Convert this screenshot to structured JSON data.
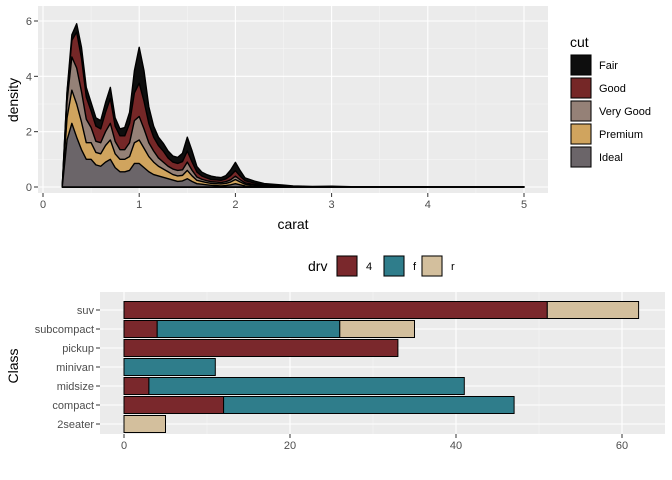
{
  "chart_data": [
    {
      "type": "area",
      "subtype": "stacked-density",
      "xlabel": "carat",
      "ylabel": "density",
      "xlim": [
        0,
        5
      ],
      "ylim": [
        0,
        6
      ],
      "x_ticks": [
        "0",
        "1",
        "2",
        "3",
        "4",
        "5"
      ],
      "y_ticks": [
        "0",
        "2",
        "4",
        "6"
      ],
      "legend": {
        "title": "cut",
        "position": "right"
      },
      "x": [
        0.2,
        0.25,
        0.3,
        0.35,
        0.4,
        0.45,
        0.5,
        0.55,
        0.6,
        0.65,
        0.7,
        0.75,
        0.8,
        0.85,
        0.9,
        0.95,
        1.0,
        1.05,
        1.1,
        1.15,
        1.2,
        1.25,
        1.3,
        1.35,
        1.4,
        1.45,
        1.5,
        1.55,
        1.6,
        1.65,
        1.7,
        1.75,
        1.8,
        1.85,
        1.9,
        1.95,
        2.0,
        2.05,
        2.1,
        2.2,
        2.3,
        2.4,
        2.5,
        2.6,
        2.8,
        3.0,
        3.2,
        3.5,
        4.0,
        4.5,
        5.0
      ],
      "series": [
        {
          "name": "Ideal",
          "color": "#6b6569",
          "values": [
            0,
            1.7,
            2.3,
            1.8,
            1.35,
            1.0,
            1.0,
            0.8,
            0.75,
            0.9,
            1.0,
            0.7,
            0.55,
            0.55,
            0.6,
            0.85,
            0.85,
            0.7,
            0.55,
            0.45,
            0.4,
            0.35,
            0.3,
            0.25,
            0.2,
            0.22,
            0.3,
            0.2,
            0.12,
            0.1,
            0.08,
            0.06,
            0.05,
            0.04,
            0.05,
            0.08,
            0.12,
            0.08,
            0.04,
            0.02,
            0.01,
            0.01,
            0.005,
            0,
            0,
            0,
            0,
            0,
            0,
            0,
            0
          ]
        },
        {
          "name": "Premium",
          "color": "#d0a45e",
          "values": [
            0,
            0.8,
            1.2,
            1.2,
            1.0,
            0.6,
            0.6,
            0.45,
            0.45,
            0.6,
            0.7,
            0.5,
            0.45,
            0.45,
            0.5,
            0.75,
            0.85,
            0.7,
            0.55,
            0.45,
            0.35,
            0.3,
            0.25,
            0.2,
            0.2,
            0.2,
            0.3,
            0.2,
            0.12,
            0.1,
            0.08,
            0.07,
            0.07,
            0.07,
            0.08,
            0.1,
            0.15,
            0.1,
            0.06,
            0.04,
            0.02,
            0.015,
            0.01,
            0.005,
            0,
            0,
            0,
            0,
            0,
            0,
            0
          ]
        },
        {
          "name": "Very Good",
          "color": "#958177",
          "values": [
            0,
            0.6,
            1.2,
            1.3,
            1.1,
            0.85,
            0.55,
            0.4,
            0.4,
            0.5,
            0.6,
            0.45,
            0.35,
            0.35,
            0.5,
            0.8,
            0.85,
            0.7,
            0.5,
            0.4,
            0.3,
            0.25,
            0.2,
            0.2,
            0.2,
            0.2,
            0.3,
            0.2,
            0.12,
            0.08,
            0.07,
            0.06,
            0.06,
            0.05,
            0.06,
            0.08,
            0.12,
            0.08,
            0.05,
            0.03,
            0.015,
            0.01,
            0.01,
            0.005,
            0,
            0,
            0,
            0,
            0,
            0,
            0
          ]
        },
        {
          "name": "Good",
          "color": "#752727",
          "values": [
            0,
            0.3,
            0.6,
            1.3,
            1.2,
            0.8,
            0.6,
            0.55,
            0.5,
            0.7,
            0.9,
            0.55,
            0.5,
            0.5,
            0.7,
            1.0,
            1.2,
            1.0,
            0.7,
            0.5,
            0.45,
            0.4,
            0.3,
            0.25,
            0.25,
            0.3,
            0.4,
            0.3,
            0.18,
            0.12,
            0.1,
            0.08,
            0.08,
            0.08,
            0.1,
            0.15,
            0.2,
            0.13,
            0.08,
            0.05,
            0.03,
            0.02,
            0.015,
            0.01,
            0.005,
            0,
            0,
            0,
            0,
            0,
            0
          ]
        },
        {
          "name": "Fair",
          "color": "#0e0e0e",
          "values": [
            0,
            0.05,
            0.2,
            0.3,
            0.4,
            0.35,
            0.3,
            0.3,
            0.3,
            0.35,
            0.4,
            0.3,
            0.25,
            0.3,
            0.4,
            0.8,
            1.3,
            1.1,
            0.6,
            0.4,
            0.3,
            0.28,
            0.25,
            0.22,
            0.22,
            0.3,
            0.5,
            0.4,
            0.2,
            0.14,
            0.12,
            0.12,
            0.1,
            0.1,
            0.12,
            0.2,
            0.3,
            0.2,
            0.1,
            0.07,
            0.05,
            0.04,
            0.03,
            0.02,
            0.015,
            0.03,
            0.01,
            0.005,
            0.002,
            0,
            0
          ]
        }
      ],
      "legend_order": [
        "Fair",
        "Good",
        "Very Good",
        "Premium",
        "Ideal"
      ]
    },
    {
      "type": "bar",
      "subtype": "horizontal-stacked",
      "xlabel": "",
      "ylabel": "Class",
      "xlim": [
        0,
        65
      ],
      "x_ticks": [
        "0",
        "20",
        "40",
        "60"
      ],
      "categories": [
        "2seater",
        "compact",
        "midsize",
        "minivan",
        "pickup",
        "subcompact",
        "suv"
      ],
      "legend": {
        "title": "drv",
        "position": "top"
      },
      "series": [
        {
          "name": "4",
          "color": "#7a282c",
          "values": [
            0,
            12,
            3,
            0,
            33,
            4,
            51
          ]
        },
        {
          "name": "f",
          "color": "#2f7d8b",
          "values": [
            0,
            35,
            38,
            11,
            0,
            22,
            0
          ]
        },
        {
          "name": "r",
          "color": "#d3bf9d",
          "values": [
            5,
            0,
            0,
            0,
            0,
            9,
            11
          ]
        }
      ]
    }
  ]
}
